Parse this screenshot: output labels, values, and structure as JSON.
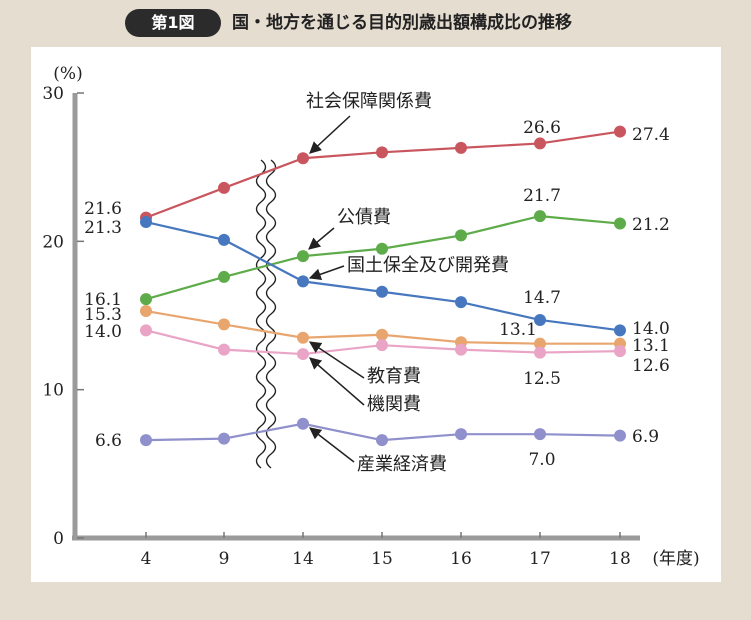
{
  "header": {
    "figure_label": "第1図",
    "title": "国・地方を通じる目的別歳出額構成比の推移"
  },
  "chart_data": {
    "type": "line",
    "title": "国・地方を通じる目的別歳出額構成比の推移",
    "ylabel": "(%)",
    "xlabel": "(年度)",
    "categories": [
      "4",
      "9",
      "14",
      "15",
      "16",
      "17",
      "18"
    ],
    "ylim": [
      0,
      30
    ],
    "yticks": [
      "0",
      "10",
      "20",
      "30"
    ],
    "grid": false,
    "axis_break_between": [
      "9",
      "14"
    ],
    "series": [
      {
        "name": "社会保障関係費",
        "color": "#c9565f",
        "values": [
          21.6,
          23.6,
          25.6,
          26.0,
          26.3,
          26.6,
          27.4
        ],
        "labels": [
          "21.6",
          "",
          "",
          "",
          "",
          "26.6",
          "27.4"
        ]
      },
      {
        "name": "公債費",
        "color": "#5eab4a",
        "values": [
          16.1,
          17.6,
          19.0,
          19.5,
          20.4,
          21.7,
          21.2
        ],
        "labels": [
          "16.1",
          "",
          "",
          "",
          "",
          "21.7",
          "21.2"
        ]
      },
      {
        "name": "国土保全及び開発費",
        "color": "#4778bf",
        "values": [
          21.3,
          20.1,
          17.3,
          16.6,
          15.9,
          14.7,
          14.0
        ],
        "labels": [
          "21.3",
          "",
          "",
          "",
          "",
          "14.7",
          "14.0"
        ]
      },
      {
        "name": "教育費",
        "color": "#e8a56e",
        "values": [
          15.3,
          14.4,
          13.5,
          13.7,
          13.2,
          13.1,
          13.1
        ],
        "labels": [
          "15.3",
          "",
          "",
          "",
          "",
          "13.1",
          "13.1"
        ]
      },
      {
        "name": "機関費",
        "color": "#e9a4c6",
        "values": [
          14.0,
          12.7,
          12.4,
          13.0,
          12.7,
          12.5,
          12.6
        ],
        "labels": [
          "14.0",
          "",
          "",
          "",
          "",
          "12.5",
          "12.6"
        ]
      },
      {
        "name": "産業経済費",
        "color": "#9090cc",
        "values": [
          6.6,
          6.7,
          7.7,
          6.6,
          7.0,
          7.0,
          6.9
        ],
        "labels": [
          "6.6",
          "",
          "",
          "",
          "",
          "7.0",
          "6.9"
        ]
      }
    ]
  }
}
